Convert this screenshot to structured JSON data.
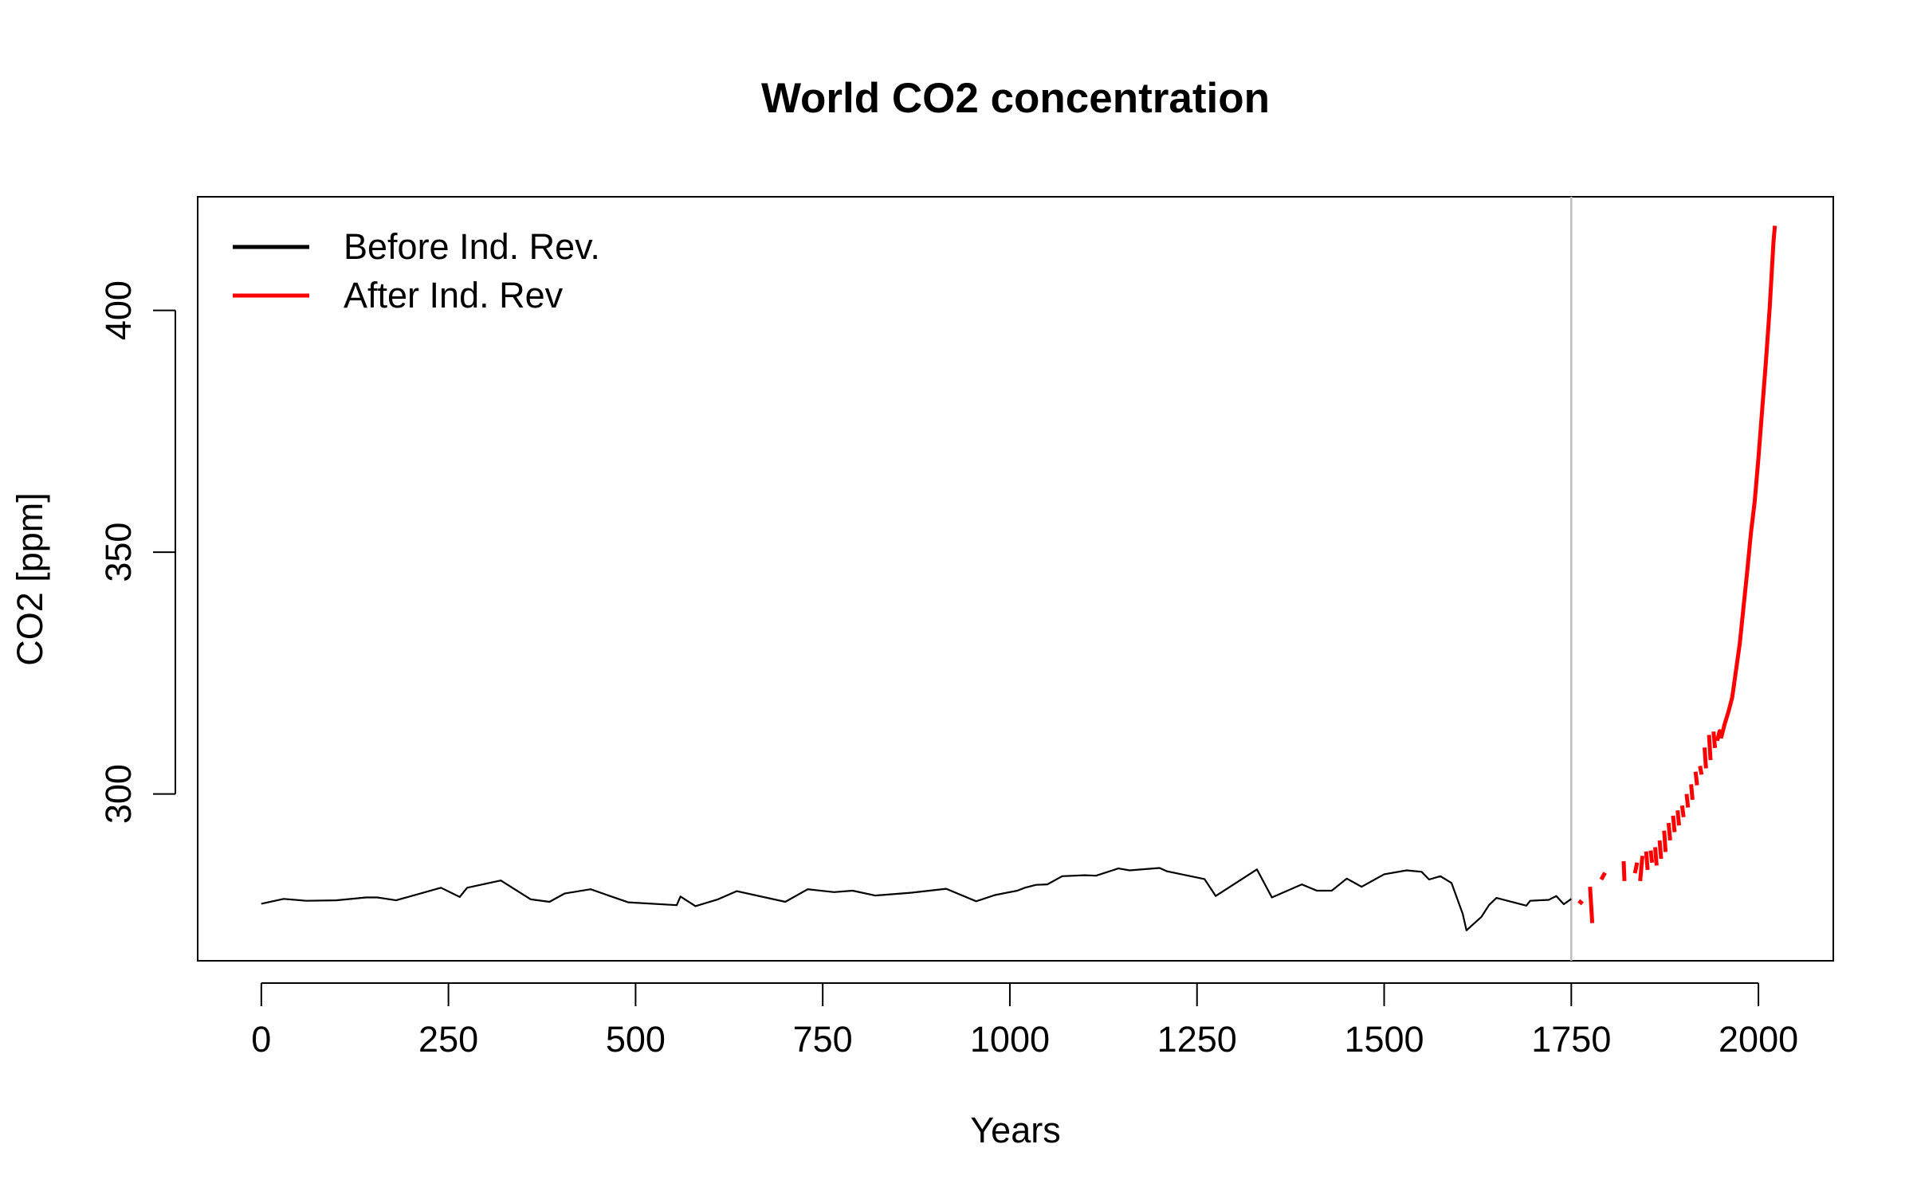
{
  "chart_data": {
    "type": "line",
    "title": "World CO2 concentration",
    "xlabel": "Years",
    "ylabel": "CO2 [ppm]",
    "xlim": [
      -85,
      2100
    ],
    "ylim": [
      265.5,
      423.5
    ],
    "x_ticks": [
      0,
      250,
      500,
      750,
      1000,
      1250,
      1500,
      1750,
      2000
    ],
    "y_ticks": [
      300,
      350,
      400
    ],
    "grid": false,
    "legend_position": "top-left",
    "reference_line": {
      "x": 1750,
      "color": "#bebebe"
    },
    "series": [
      {
        "name": "Before Ind. Rev.",
        "color": "#000000",
        "style": "line",
        "points": [
          [
            0,
            277.3
          ],
          [
            30,
            278.3
          ],
          [
            60,
            277.9
          ],
          [
            100,
            278.0
          ],
          [
            140,
            278.6
          ],
          [
            155,
            278.6
          ],
          [
            180,
            278.0
          ],
          [
            240,
            280.6
          ],
          [
            265,
            278.7
          ],
          [
            275,
            280.6
          ],
          [
            320,
            282.1
          ],
          [
            360,
            278.2
          ],
          [
            385,
            277.7
          ],
          [
            405,
            279.4
          ],
          [
            440,
            280.3
          ],
          [
            490,
            277.6
          ],
          [
            555,
            277.0
          ],
          [
            560,
            278.8
          ],
          [
            580,
            276.8
          ],
          [
            610,
            278.2
          ],
          [
            635,
            279.9
          ],
          [
            700,
            277.7
          ],
          [
            730,
            280.3
          ],
          [
            765,
            279.7
          ],
          [
            790,
            280.0
          ],
          [
            820,
            279.0
          ],
          [
            870,
            279.6
          ],
          [
            915,
            280.4
          ],
          [
            955,
            277.8
          ],
          [
            980,
            279.1
          ],
          [
            1010,
            280.0
          ],
          [
            1020,
            280.6
          ],
          [
            1035,
            281.2
          ],
          [
            1050,
            281.3
          ],
          [
            1070,
            283.0
          ],
          [
            1100,
            283.2
          ],
          [
            1115,
            283.1
          ],
          [
            1145,
            284.6
          ],
          [
            1160,
            284.2
          ],
          [
            1200,
            284.7
          ],
          [
            1210,
            284.0
          ],
          [
            1260,
            282.4
          ],
          [
            1275,
            278.9
          ],
          [
            1330,
            284.4
          ],
          [
            1350,
            278.6
          ],
          [
            1390,
            281.3
          ],
          [
            1410,
            280.0
          ],
          [
            1430,
            280.0
          ],
          [
            1450,
            282.5
          ],
          [
            1470,
            280.8
          ],
          [
            1500,
            283.4
          ],
          [
            1530,
            284.2
          ],
          [
            1550,
            283.9
          ],
          [
            1560,
            282.3
          ],
          [
            1575,
            283.0
          ],
          [
            1590,
            281.6
          ],
          [
            1605,
            275.2
          ],
          [
            1610,
            271.8
          ],
          [
            1630,
            274.6
          ],
          [
            1640,
            277.0
          ],
          [
            1650,
            278.5
          ],
          [
            1690,
            276.9
          ],
          [
            1695,
            277.9
          ],
          [
            1720,
            278.1
          ],
          [
            1730,
            278.9
          ],
          [
            1740,
            277.2
          ],
          [
            1750,
            278.3
          ]
        ]
      },
      {
        "name": "After Ind. Rev",
        "color": "#ff0000",
        "style": "dashed-to-solid",
        "segments": [
          [
            [
              1760,
              277.9
            ],
            [
              1765,
              277.3
            ]
          ],
          [
            [
              1775,
              280.8
            ],
            [
              1778,
              273.3
            ]
          ],
          [
            [
              1790,
              282.3
            ],
            [
              1795,
              283.7
            ]
          ],
          [
            [
              1820,
              286.1
            ],
            [
              1821,
              282.0
            ]
          ],
          [
            [
              1835,
              283.6
            ],
            [
              1838,
              285.8
            ]
          ],
          [
            [
              1842,
              282.0
            ],
            [
              1845,
              287.2
            ]
          ],
          [
            [
              1850,
              288.1
            ],
            [
              1852,
              284.3
            ]
          ],
          [
            [
              1856,
              288.3
            ],
            [
              1858,
              285.8
            ]
          ],
          [
            [
              1862,
              289.0
            ],
            [
              1864,
              285.2
            ]
          ],
          [
            [
              1868,
              290.4
            ],
            [
              1870,
              286.6
            ]
          ],
          [
            [
              1874,
              292.4
            ],
            [
              1876,
              288.0
            ]
          ],
          [
            [
              1880,
              294.0
            ],
            [
              1882,
              290.4
            ]
          ],
          [
            [
              1886,
              295.5
            ],
            [
              1888,
              292.1
            ]
          ],
          [
            [
              1892,
              296.6
            ],
            [
              1894,
              293.5
            ]
          ],
          [
            [
              1898,
              297.6
            ],
            [
              1900,
              295.2
            ]
          ],
          [
            [
              1904,
              300.0
            ],
            [
              1906,
              297.2
            ]
          ],
          [
            [
              1910,
              302.0
            ],
            [
              1912,
              298.8
            ]
          ],
          [
            [
              1916,
              304.6
            ],
            [
              1918,
              301.8
            ]
          ],
          [
            [
              1922,
              305.8
            ],
            [
              1924,
              304.0
            ]
          ],
          [
            [
              1928,
              309.6
            ],
            [
              1930,
              305.3
            ]
          ],
          [
            [
              1934,
              312.2
            ],
            [
              1936,
              307.0
            ]
          ],
          [
            [
              1940,
              312.9
            ],
            [
              1942,
              309.5
            ]
          ],
          [
            [
              1945,
              311.0
            ],
            [
              1948,
              313.0
            ],
            [
              1950,
              311.5
            ]
          ],
          [
            [
              1950,
              311.5
            ],
            [
              1955,
              314.5
            ],
            [
              1960,
              317.0
            ],
            [
              1965,
              320.0
            ],
            [
              1970,
              325.5
            ],
            [
              1975,
              331.0
            ],
            [
              1980,
              338.5
            ],
            [
              1985,
              346.0
            ],
            [
              1990,
              354.0
            ],
            [
              1995,
              360.5
            ],
            [
              2000,
              369.5
            ],
            [
              2005,
              379.5
            ],
            [
              2010,
              389.5
            ],
            [
              2015,
              400.5
            ],
            [
              2018,
              408.5
            ],
            [
              2020,
              414.0
            ],
            [
              2022,
              417.5
            ]
          ]
        ]
      }
    ]
  }
}
